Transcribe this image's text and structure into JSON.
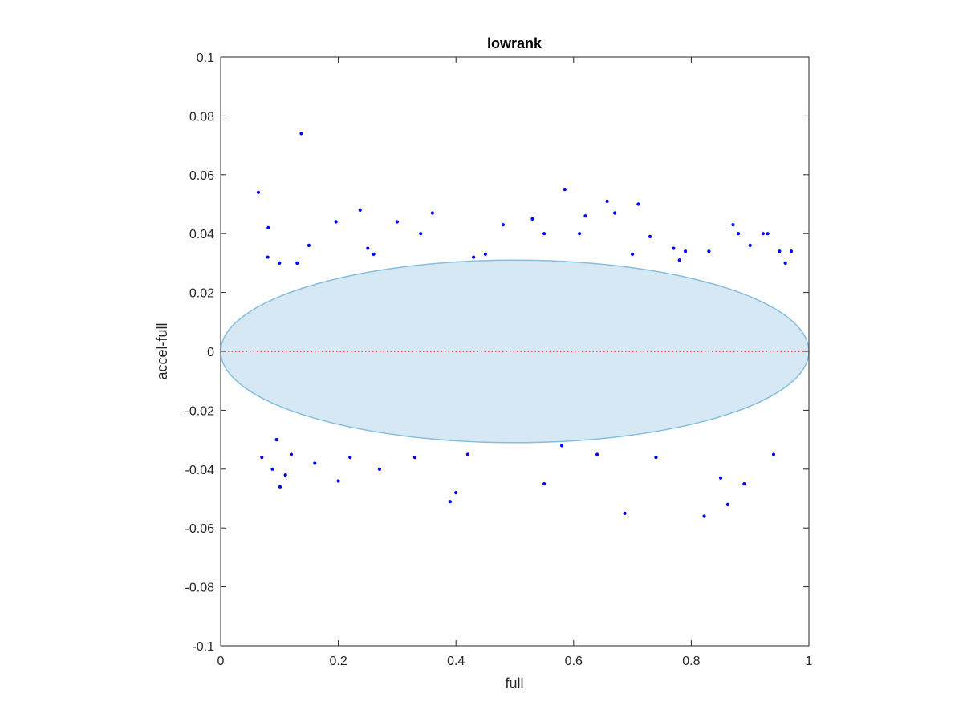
{
  "chart_data": {
    "type": "scatter",
    "title": "lowrank",
    "xlabel": "full",
    "ylabel": "accel-full",
    "xlim": [
      0,
      1
    ],
    "ylim": [
      -0.1,
      0.1
    ],
    "x_ticks": [
      0,
      0.2,
      0.4,
      0.6,
      0.8,
      1
    ],
    "x_tick_labels": [
      "0",
      "0.2",
      "0.4",
      "0.6",
      "0.8",
      "1"
    ],
    "y_ticks": [
      -0.1,
      -0.08,
      -0.06,
      -0.04,
      -0.02,
      0,
      0.02,
      0.04,
      0.06,
      0.08,
      0.1
    ],
    "y_tick_labels": [
      "-0.1",
      "-0.08",
      "-0.06",
      "-0.04",
      "-0.02",
      "0",
      "0.02",
      "0.04",
      "0.06",
      "0.08",
      "0.1"
    ],
    "grid": false,
    "box": true,
    "reference_line": {
      "y": 0,
      "style": "dotted",
      "color": "#ff0000"
    },
    "ellipse": {
      "center_x": 0.5,
      "center_y": 0.0,
      "semi_axis_x": 0.5,
      "semi_axis_y": 0.031,
      "fill": "#d6e8f3",
      "stroke": "#86bedd"
    },
    "marker_color": "#0000ff",
    "series": [
      {
        "values_note_omitted": "",
        "x": [
          0.137,
          0.064,
          0.585,
          0.196,
          0.237,
          0.36,
          0.657,
          0.71,
          0.871,
          0.922,
          0.39,
          0.822,
          0.862,
          0.687,
          0.101,
          0.55,
          0.088,
          0.095,
          0.2,
          0.081,
          0.4,
          0.48,
          0.62,
          0.77,
          0.83,
          0.9,
          0.93,
          0.96,
          0.12,
          0.15,
          0.25,
          0.3,
          0.34,
          0.45,
          0.53,
          0.67,
          0.73,
          0.79,
          0.95,
          0.07,
          0.11,
          0.16,
          0.22,
          0.27,
          0.33,
          0.42,
          0.58,
          0.64,
          0.74,
          0.85,
          0.89,
          0.94,
          0.08,
          0.1,
          0.13,
          0.26,
          0.43,
          0.55,
          0.61,
          0.7,
          0.78,
          0.88,
          0.97
        ],
        "y": [
          0.074,
          0.054,
          0.055,
          0.044,
          0.048,
          0.047,
          0.051,
          0.05,
          0.043,
          0.04,
          -0.051,
          -0.056,
          -0.052,
          -0.055,
          -0.046,
          -0.045,
          -0.04,
          -0.03,
          -0.044,
          0.042,
          -0.048,
          0.043,
          0.046,
          0.035,
          0.034,
          0.036,
          0.04,
          0.03,
          -0.035,
          0.036,
          0.035,
          0.044,
          0.04,
          0.033,
          0.045,
          0.047,
          0.039,
          0.034,
          0.034,
          -0.036,
          -0.042,
          -0.038,
          -0.036,
          -0.04,
          -0.036,
          -0.035,
          -0.032,
          -0.035,
          -0.036,
          -0.043,
          -0.045,
          -0.035,
          0.032,
          0.03,
          0.03,
          0.033,
          0.032,
          0.04,
          0.04,
          0.033,
          0.031,
          0.04,
          0.034
        ]
      }
    ]
  }
}
